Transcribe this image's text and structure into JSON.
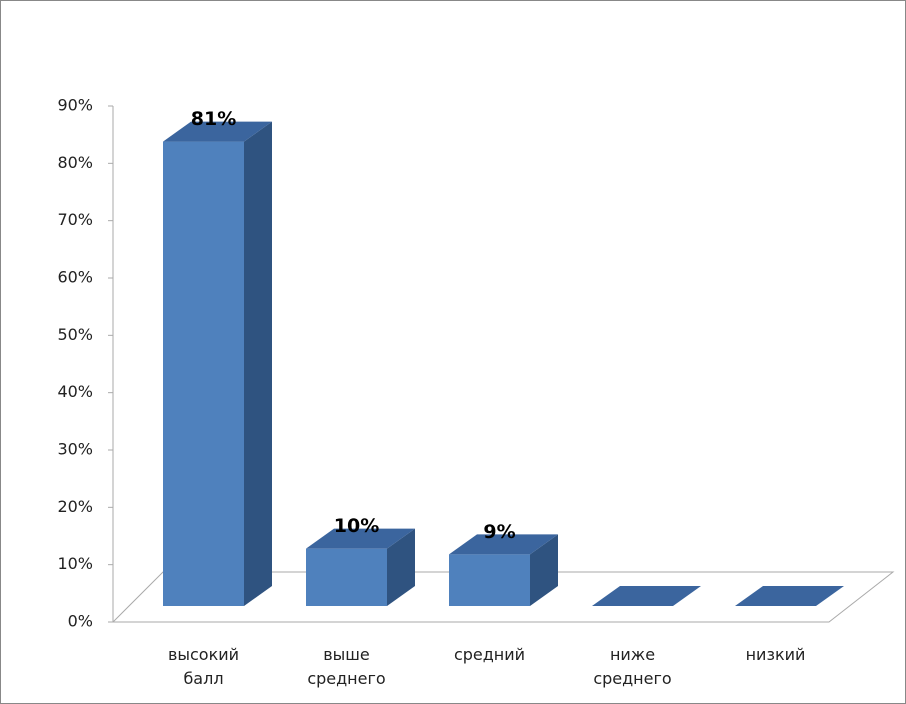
{
  "chart_data": {
    "type": "bar3d",
    "categories": [
      "высокий балл",
      "выше среднего",
      "средний",
      "ниже среднего",
      "низкий"
    ],
    "values": [
      81,
      10,
      9,
      0,
      0
    ],
    "value_labels": [
      "81%",
      "10%",
      "9%",
      null,
      null
    ],
    "color": "#4f81bd",
    "ylim": [
      0,
      90
    ],
    "yticks": [
      {
        "value": 0,
        "label": "0%"
      },
      {
        "value": 10,
        "label": "10%"
      },
      {
        "value": 20,
        "label": "20%"
      },
      {
        "value": 30,
        "label": "30%"
      },
      {
        "value": 40,
        "label": "40%"
      },
      {
        "value": 50,
        "label": "50%"
      },
      {
        "value": 60,
        "label": "60%"
      },
      {
        "value": 70,
        "label": "70%"
      },
      {
        "value": 80,
        "label": "80%"
      },
      {
        "value": 90,
        "label": "90%"
      }
    ]
  }
}
